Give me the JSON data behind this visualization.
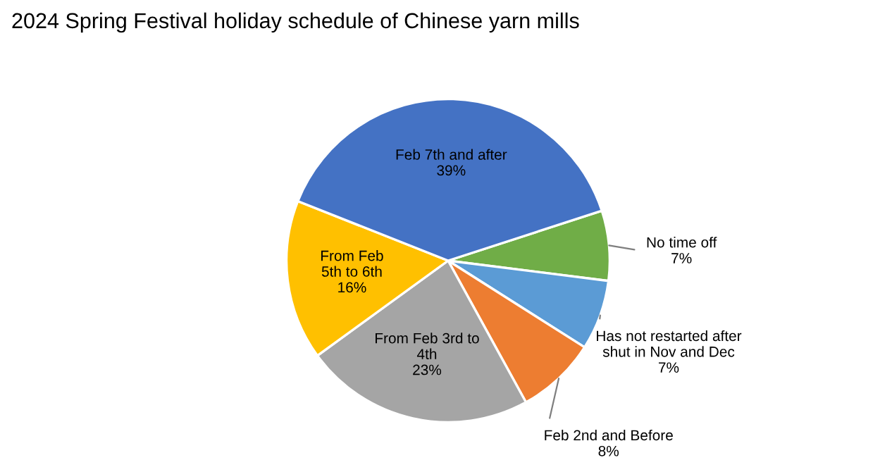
{
  "chart_data": {
    "type": "pie",
    "title": "2024 Spring Festival holiday schedule of Chinese yarn mills",
    "categories": [
      "No time off",
      "Has not restarted after\nshut in Nov and Dec",
      "Feb 2nd and Before",
      "From Feb 3rd to\n4th",
      "From Feb\n5th to 6th",
      "Feb 7th and after"
    ],
    "values": [
      7,
      7,
      8,
      23,
      16,
      39
    ],
    "value_labels": [
      "7%",
      "7%",
      "8%",
      "23%",
      "16%",
      "39%"
    ],
    "colors": [
      "#70ad47",
      "#5b9bd5",
      "#ed7d31",
      "#a5a5a5",
      "#ffc000",
      "#4472c4"
    ],
    "legend": false
  }
}
